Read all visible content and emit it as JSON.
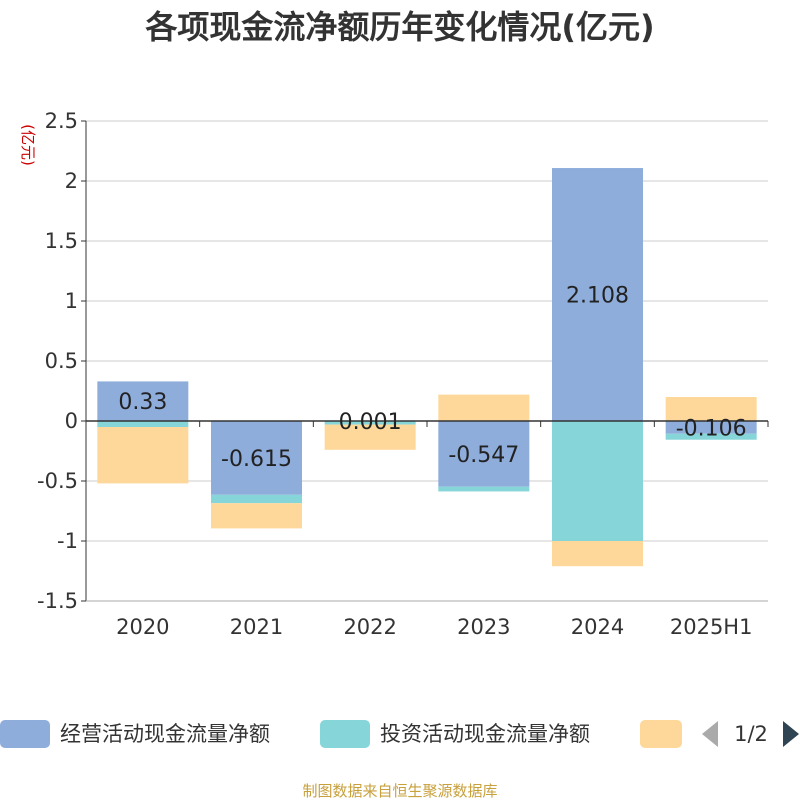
{
  "chart_data": {
    "type": "bar",
    "stacked": true,
    "title": "各项现金流净额历年变化情况(亿元)",
    "ylabel": "(亿元)",
    "categories": [
      "2020",
      "2021",
      "2022",
      "2023",
      "2024",
      "2025H1"
    ],
    "series": [
      {
        "name": "经营活动现金流量净额",
        "color": "#8eaddb",
        "values": [
          0.33,
          -0.615,
          0.001,
          -0.547,
          2.108,
          -0.106
        ],
        "show_labels": true
      },
      {
        "name": "投资活动现金流量净额",
        "color": "#86d5d8",
        "values": [
          -0.05,
          -0.07,
          -0.03,
          -0.04,
          -1.0,
          -0.05
        ],
        "show_labels": false
      },
      {
        "name": "",
        "color": "#fdd89a",
        "values": [
          -0.47,
          -0.21,
          -0.21,
          0.22,
          -0.21,
          0.2
        ],
        "show_labels": false
      }
    ],
    "data_labels": [
      "0.33",
      "-0.615",
      "0.001",
      "-0.547",
      "2.108",
      "-0.106"
    ],
    "ylim": [
      -1.5,
      2.5
    ],
    "yticks": [
      2.5,
      2,
      1.5,
      1,
      0.5,
      0,
      -0.5,
      -1,
      -1.5
    ],
    "ytick_labels": [
      "2.5",
      "2",
      "1.5",
      "1",
      "0.5",
      "0",
      "-0.5",
      "-1",
      "-1.5"
    ],
    "grid": true,
    "legend_position": "bottom"
  },
  "legend": {
    "items": [
      {
        "label": "经营活动现金流量净额",
        "color": "#8eaddb"
      },
      {
        "label": "投资活动现金流量净额",
        "color": "#86d5d8"
      },
      {
        "label": "",
        "color": "#fdd89a"
      }
    ],
    "pager": "1/2",
    "pager_prev_color": "#aaaaaa",
    "pager_next_color": "#2f4554"
  },
  "source": "制图数据来自恒生聚源数据库"
}
